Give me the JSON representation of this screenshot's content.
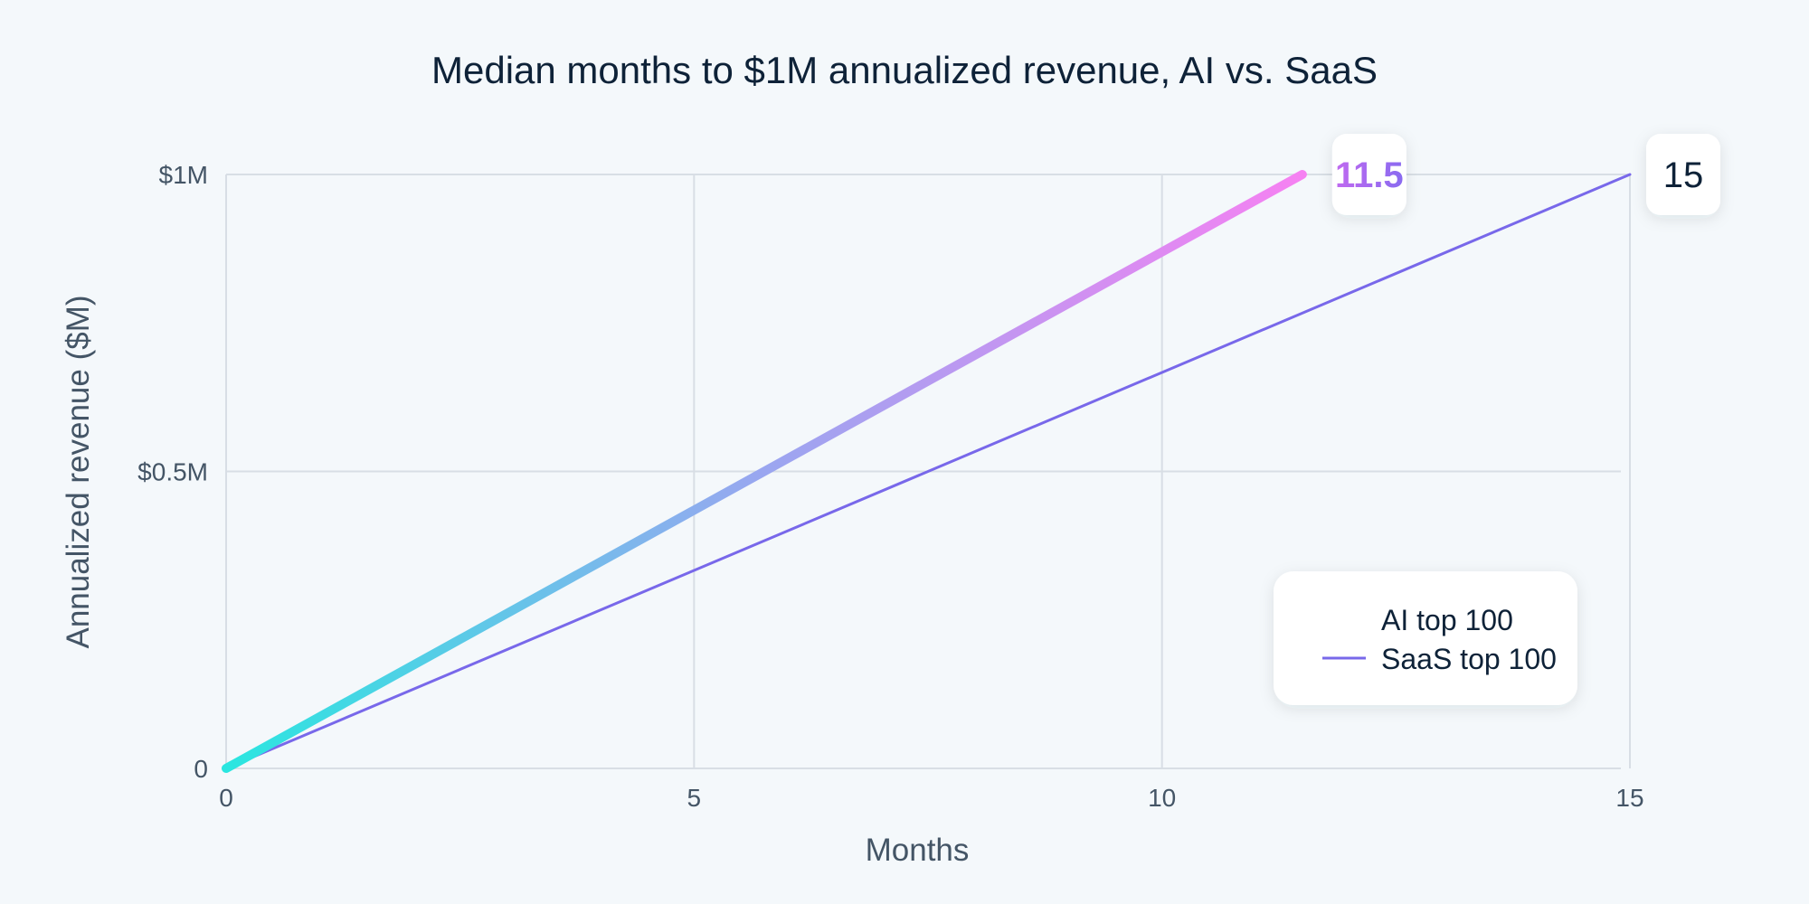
{
  "colors": {
    "background": "#F4F8FB",
    "grid": "#D8DEE5",
    "axis_text": "#445566",
    "title_text": "#0E2238",
    "ai_gradient_start": "#2AE6E0",
    "ai_gradient_mid": "#9AA6F0",
    "ai_gradient_end": "#F681F2",
    "saas_line": "#7868EA",
    "ai_label_start": "#C06AF0",
    "ai_label_end": "#8A6BF0",
    "saas_label_text": "#0E2238",
    "callout_bg": "#FFFFFF"
  },
  "chart_data": {
    "type": "line",
    "title": "Median months to $1M annualized revenue, AI vs. SaaS",
    "xlabel": "Months",
    "ylabel": "Annualized revenue ($M)",
    "xlim": [
      0,
      15
    ],
    "ylim": [
      0,
      1
    ],
    "grid": true,
    "x_ticks": [
      {
        "value": 0,
        "label": "0"
      },
      {
        "value": 5,
        "label": "5"
      },
      {
        "value": 10,
        "label": "10"
      },
      {
        "value": 15,
        "label": "15"
      }
    ],
    "y_ticks": [
      {
        "value": 0,
        "label": "0"
      },
      {
        "value": 0.5,
        "label": "$0.5M"
      },
      {
        "value": 1,
        "label": "$1M"
      }
    ],
    "legend_position": "bottom-right",
    "series": [
      {
        "name": "AI top 100",
        "x": [
          0,
          11.5
        ],
        "y": [
          0,
          1
        ],
        "style": "gradient-thick",
        "end_label": "11.5"
      },
      {
        "name": "SaaS top 100",
        "x": [
          0,
          15
        ],
        "y": [
          0,
          1
        ],
        "style": "solid-thin",
        "end_label": "15"
      }
    ]
  }
}
